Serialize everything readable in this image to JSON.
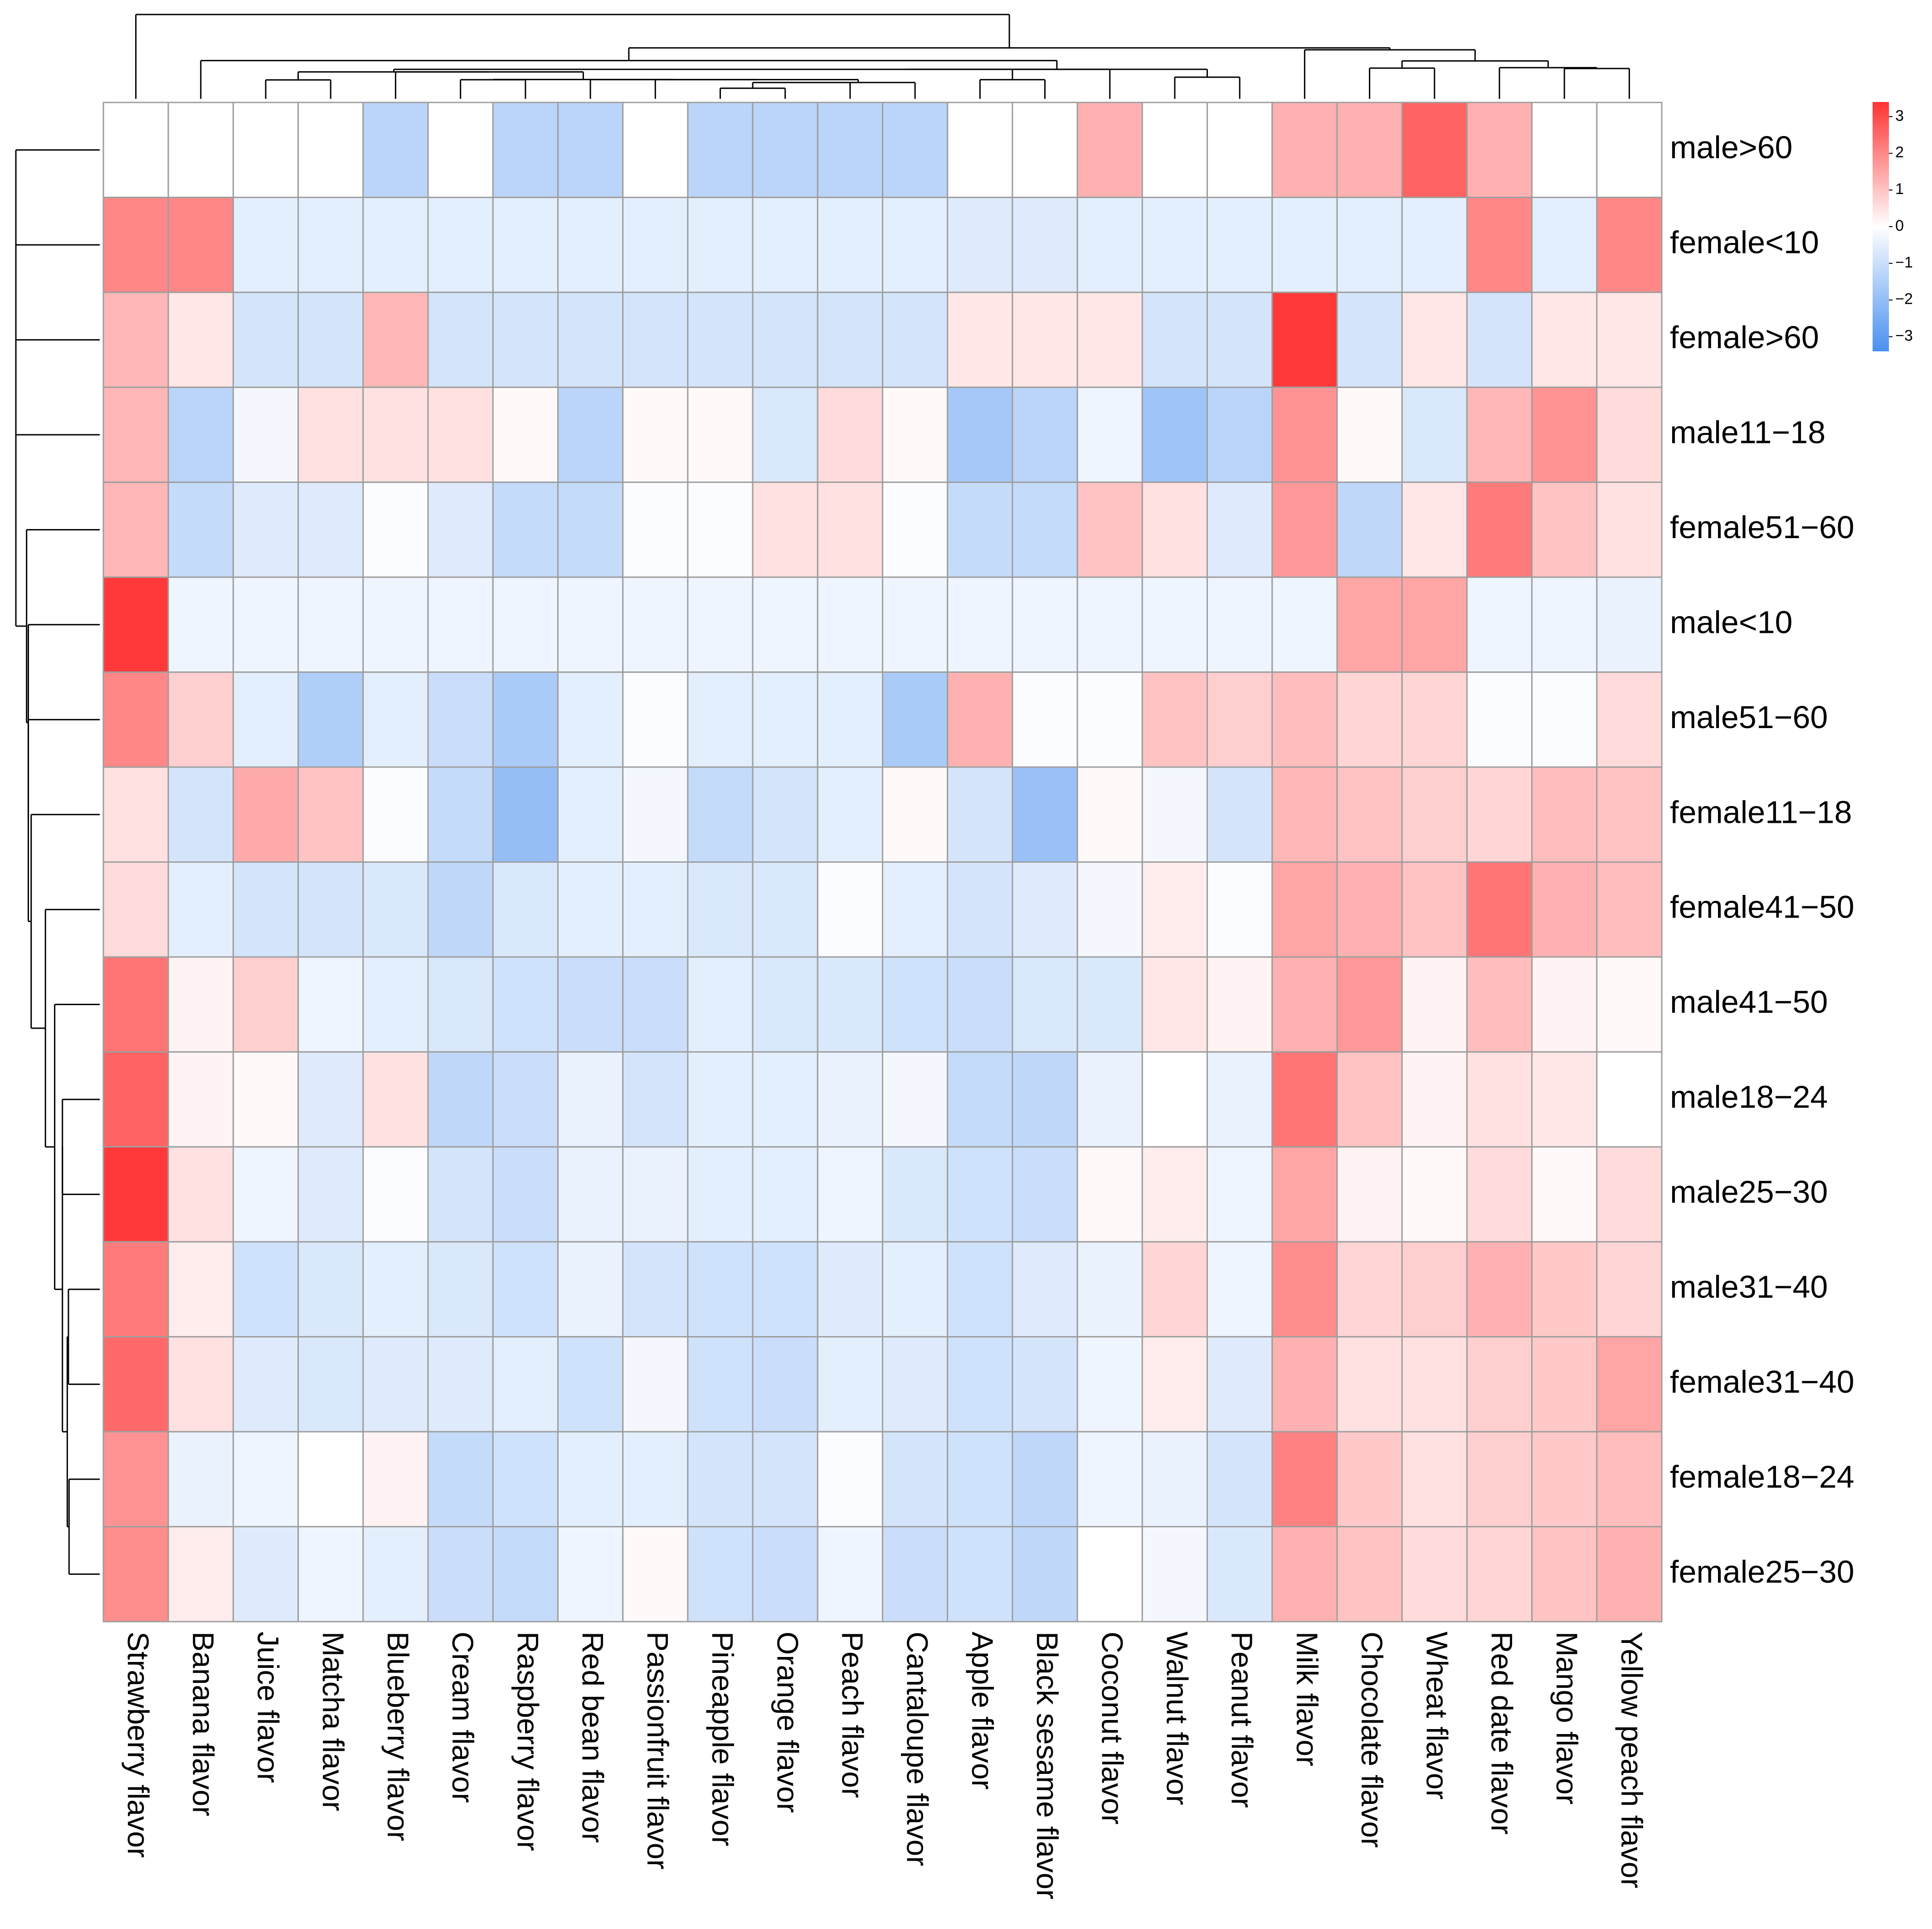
{
  "chart_data": {
    "type": "heatmap",
    "title": "",
    "clustered": true,
    "dendrograms": [
      "rows-left",
      "columns-top"
    ],
    "cell_border_color": "#9e9e9e",
    "color_scale": {
      "low": "#4a90f0",
      "mid": "#ffffff",
      "high": "#ff3333",
      "domain": [
        -3.4,
        3.4
      ],
      "legend_ticks": [
        3,
        2,
        1,
        0,
        -1,
        -2,
        -3
      ],
      "legend_tick_labels": [
        "3",
        "2",
        "1",
        "0",
        "−1",
        "−2",
        "−3"
      ],
      "legend_position": "top-right"
    },
    "rows": [
      "male>60",
      "female<10",
      "female>60",
      "male11−18",
      "female51−60",
      "male<10",
      "male51−60",
      "female11−18",
      "female41−50",
      "male41−50",
      "male18−24",
      "male25−30",
      "male31−40",
      "female31−40",
      "female18−24",
      "female25−30"
    ],
    "columns": [
      "Strawberry flavor",
      "Banana flavor",
      "Juice flavor",
      "Matcha flavor",
      "Blueberry flavor",
      "Cream flavor",
      "Raspberry flavor",
      "Red bean flavor",
      "Passionfruit flavor",
      "Pineapple flavor",
      "Orange flavor",
      "Peach flavor",
      "Cantaloupe flavor",
      "Apple flavor",
      "Black sesame flavor",
      "Coconut flavor",
      "Walnut flavor",
      "Peanut flavor",
      "Milk flavor",
      "Chocolate flavor",
      "Wheat flavor",
      "Red date flavor",
      "Mango flavor",
      "Yellow peach flavor"
    ],
    "values": [
      [
        0.0,
        0.0,
        0.0,
        0.0,
        -1.3,
        0.0,
        -1.3,
        -1.3,
        0.0,
        -1.3,
        -1.3,
        -1.3,
        -1.3,
        0.0,
        0.0,
        1.3,
        0.0,
        0.0,
        1.3,
        1.3,
        2.6,
        1.3,
        0.0,
        0.0
      ],
      [
        2.0,
        2.0,
        -0.5,
        -0.5,
        -0.5,
        -0.5,
        -0.5,
        -0.5,
        -0.5,
        -0.5,
        -0.5,
        -0.5,
        -0.5,
        -0.6,
        -0.6,
        -0.5,
        -0.5,
        -0.5,
        -0.5,
        -0.5,
        -0.5,
        2.0,
        -0.5,
        2.0
      ],
      [
        1.2,
        0.4,
        -0.8,
        -0.8,
        1.2,
        -0.8,
        -0.8,
        -0.8,
        -0.8,
        -0.8,
        -0.8,
        -0.8,
        -0.8,
        0.4,
        0.4,
        0.4,
        -0.8,
        -0.8,
        3.3,
        -0.8,
        0.4,
        -0.8,
        0.4,
        0.4
      ],
      [
        1.2,
        -1.3,
        -0.2,
        0.5,
        0.5,
        0.5,
        0.1,
        -1.3,
        0.1,
        0.1,
        -0.7,
        0.6,
        0.1,
        -1.7,
        -1.3,
        -0.3,
        -1.8,
        -1.3,
        1.8,
        0.1,
        -0.7,
        1.2,
        1.8,
        0.6
      ],
      [
        1.2,
        -1.1,
        -0.6,
        -0.6,
        -0.1,
        -0.6,
        -1.1,
        -1.1,
        -0.1,
        -0.1,
        0.5,
        0.5,
        -0.1,
        -1.1,
        -1.1,
        1.0,
        0.5,
        -0.6,
        1.7,
        -1.2,
        0.4,
        2.2,
        1.0,
        0.5
      ],
      [
        3.3,
        -0.3,
        -0.3,
        -0.3,
        -0.3,
        -0.3,
        -0.3,
        -0.3,
        -0.3,
        -0.3,
        -0.3,
        -0.3,
        -0.3,
        -0.3,
        -0.3,
        -0.3,
        -0.3,
        -0.3,
        -0.3,
        1.5,
        1.5,
        -0.3,
        -0.3,
        -0.4
      ],
      [
        2.0,
        0.8,
        -0.5,
        -1.5,
        -0.5,
        -1.0,
        -1.6,
        -0.5,
        -0.1,
        -0.5,
        -0.5,
        -0.5,
        -1.6,
        1.3,
        -0.1,
        -0.1,
        1.0,
        0.8,
        1.1,
        0.7,
        0.7,
        -0.1,
        -0.1,
        0.6
      ],
      [
        0.5,
        -0.8,
        1.4,
        1.0,
        -0.1,
        -1.1,
        -2.0,
        -0.5,
        -0.2,
        -1.1,
        -0.8,
        -0.5,
        0.1,
        -0.8,
        -1.9,
        0.1,
        -0.2,
        -0.8,
        1.2,
        1.0,
        0.8,
        0.7,
        1.1,
        1.0
      ],
      [
        0.6,
        -0.5,
        -0.8,
        -0.8,
        -0.7,
        -1.2,
        -0.7,
        -0.5,
        -0.5,
        -0.7,
        -0.7,
        -0.1,
        -0.5,
        -0.8,
        -0.6,
        -0.2,
        0.3,
        -0.1,
        1.5,
        1.3,
        1.0,
        2.3,
        1.3,
        1.1
      ],
      [
        2.3,
        0.2,
        0.8,
        -0.3,
        -0.5,
        -0.7,
        -0.9,
        -1.0,
        -1.0,
        -0.5,
        -0.7,
        -0.7,
        -0.9,
        -1.0,
        -0.7,
        -0.7,
        0.4,
        0.2,
        1.3,
        1.7,
        0.2,
        1.1,
        0.2,
        0.1
      ],
      [
        2.6,
        0.2,
        0.1,
        -0.6,
        0.5,
        -1.2,
        -1.0,
        -0.4,
        -0.8,
        -0.5,
        -0.5,
        -0.4,
        -0.2,
        -1.1,
        -1.2,
        -0.4,
        0.0,
        -0.4,
        2.3,
        1.0,
        0.2,
        0.5,
        0.4,
        0.0
      ],
      [
        3.3,
        0.5,
        -0.3,
        -0.6,
        -0.1,
        -0.8,
        -1.0,
        -0.4,
        -0.4,
        -0.5,
        -0.5,
        -0.3,
        -0.7,
        -0.9,
        -1.0,
        0.1,
        0.3,
        -0.3,
        1.5,
        0.2,
        0.1,
        0.6,
        0.1,
        0.6
      ],
      [
        2.2,
        0.3,
        -0.9,
        -0.7,
        -0.5,
        -0.7,
        -0.9,
        -0.4,
        -0.8,
        -0.9,
        -0.9,
        -0.6,
        -0.5,
        -0.9,
        -0.6,
        -0.4,
        0.7,
        -0.3,
        1.9,
        0.7,
        0.8,
        1.3,
        0.9,
        0.7
      ],
      [
        2.5,
        0.5,
        -0.6,
        -0.7,
        -0.6,
        -0.6,
        -0.5,
        -0.9,
        -0.2,
        -0.9,
        -1.0,
        -0.5,
        -0.6,
        -0.9,
        -0.8,
        -0.3,
        0.3,
        -0.6,
        1.3,
        0.5,
        0.5,
        0.8,
        0.9,
        1.5
      ],
      [
        1.8,
        -0.4,
        -0.3,
        0.0,
        0.2,
        -1.1,
        -0.9,
        -0.5,
        -0.5,
        -0.8,
        -0.8,
        -0.1,
        -0.8,
        -0.9,
        -1.2,
        -0.3,
        -0.4,
        -0.8,
        2.1,
        0.9,
        0.5,
        0.8,
        0.9,
        1.1
      ],
      [
        1.9,
        0.3,
        -0.6,
        -0.3,
        -0.5,
        -1.0,
        -1.1,
        -0.3,
        0.1,
        -0.9,
        -1.0,
        -0.3,
        -1.0,
        -0.9,
        -1.2,
        0.0,
        -0.2,
        -0.7,
        1.3,
        1.0,
        0.6,
        0.7,
        1.0,
        1.3
      ]
    ]
  }
}
